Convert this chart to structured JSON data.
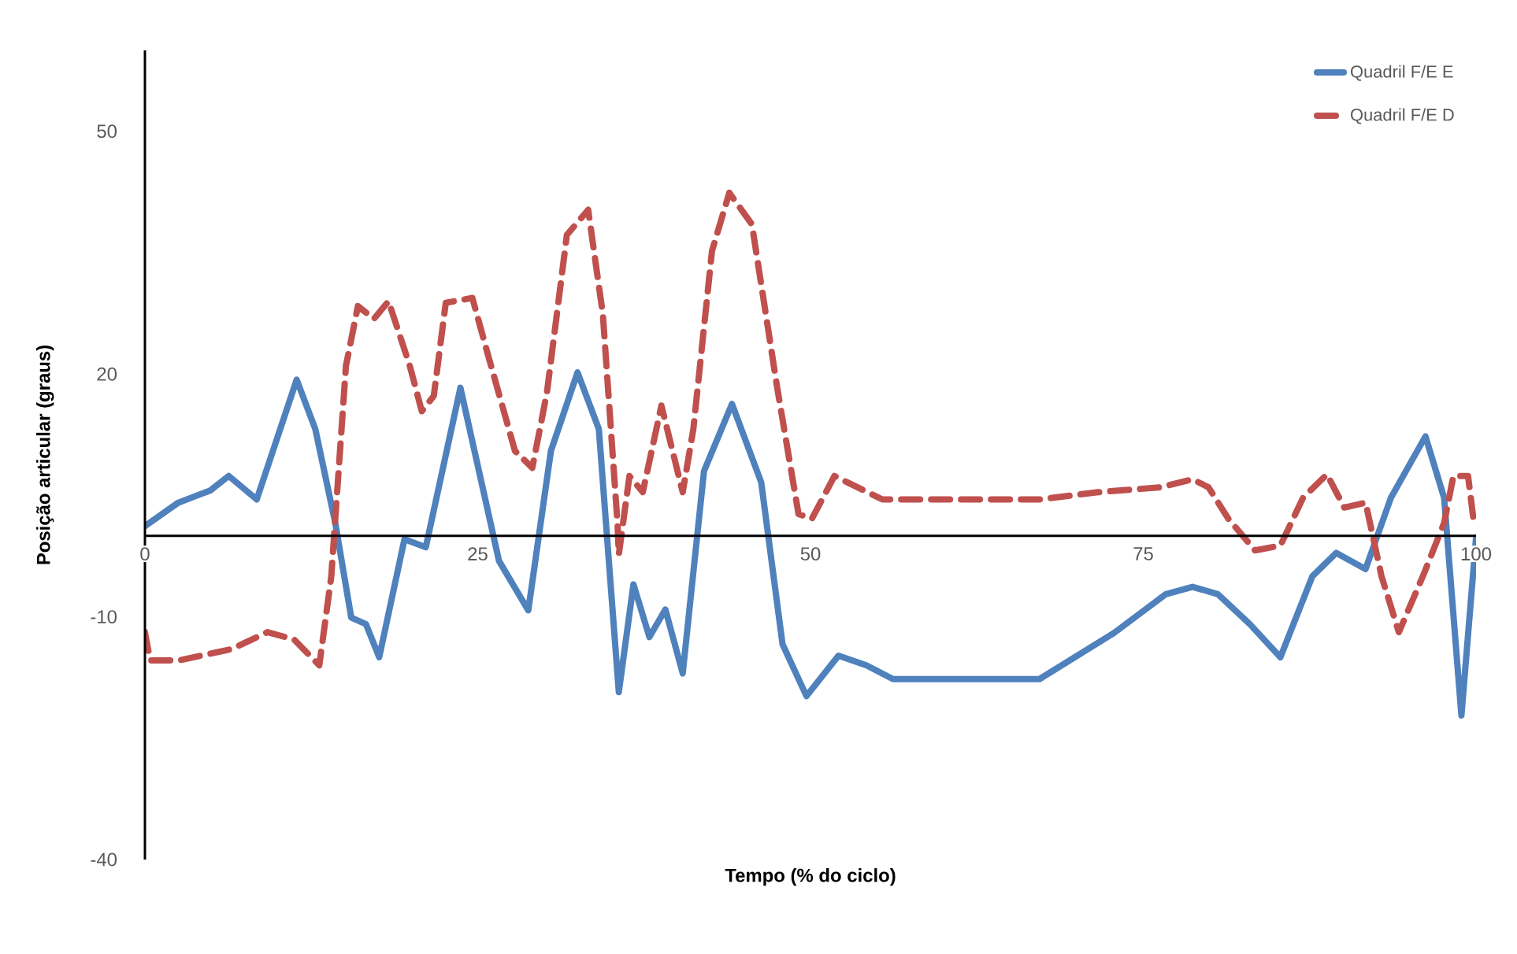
{
  "chart_data": {
    "type": "line",
    "xlabel": "Tempo (% do ciclo)",
    "ylabel": "Posição articular (graus)",
    "xlim": [
      0,
      100
    ],
    "ylim": [
      -40,
      60
    ],
    "xticks": [
      0,
      25,
      50,
      75,
      100
    ],
    "yticks": [
      -40,
      -10,
      20,
      50
    ],
    "grid": false,
    "legend": "top right",
    "series": [
      {
        "name": "Quadril F/E E",
        "color": "#4f81bd",
        "line_style": "solid",
        "x": [
          0,
          2.5,
          4.9,
          6.3,
          8.4,
          11.4,
          12.8,
          14.3,
          15.5,
          16.6,
          17.6,
          19.5,
          21.1,
          23.7,
          26.6,
          28.8,
          30.5,
          32.5,
          34.1,
          35.6,
          36.7,
          37.9,
          39.1,
          40.4,
          42,
          44.1,
          46.3,
          47.9,
          49.7,
          52.1,
          54.2,
          56.2,
          67.2,
          72.8,
          76.7,
          78.7,
          80.6,
          83,
          85.3,
          87.7,
          89.5,
          91.7,
          93.6,
          96.2,
          97.6,
          98.9,
          100
        ],
        "values": [
          1.2,
          4.1,
          5.6,
          7.4,
          4.5,
          19.3,
          13.2,
          1.6,
          -10.1,
          -10.9,
          -15,
          -0.4,
          -1.4,
          18.3,
          -3.1,
          -9.2,
          10.5,
          20.2,
          13.2,
          -19.3,
          -6,
          -12.5,
          -9.1,
          -17,
          8,
          16.3,
          6.6,
          -13.4,
          -19.8,
          -14.8,
          -16,
          -17.7,
          -17.7,
          -12,
          -7.2,
          -6.3,
          -7.2,
          -10.9,
          -15,
          -5,
          -2.1,
          -4.1,
          4.7,
          12.3,
          4.7,
          -22.2,
          -0.2
        ]
      },
      {
        "name": "Quadril F/E D",
        "color": "#c0504d",
        "line_style": "dashed",
        "x": [
          0,
          0.4,
          2.5,
          6.5,
          9.2,
          11.2,
          13.1,
          14,
          15.1,
          16,
          17.2,
          18.3,
          19.9,
          20.8,
          21.7,
          22.6,
          24.6,
          25.8,
          27.8,
          29.1,
          30.2,
          31.7,
          33.3,
          34.4,
          35.5,
          35.6,
          36.4,
          37.4,
          38.8,
          40.4,
          41.2,
          42.6,
          43.9,
          45.6,
          47.5,
          49.1,
          50.1,
          51.8,
          55.4,
          67.2,
          71.6,
          76.3,
          78.7,
          79.9,
          81.4,
          83.4,
          85.3,
          87,
          88.8,
          90.1,
          91.7,
          92.9,
          94.2,
          96,
          97.6,
          98.3,
          99.4,
          99.8
        ],
        "values": [
          -11.9,
          -15.4,
          -15.4,
          -14,
          -11.9,
          -12.8,
          -16,
          -5,
          21,
          28.4,
          26.8,
          29,
          21,
          15.4,
          17.3,
          28.8,
          29.4,
          22.2,
          10.5,
          8.4,
          17.7,
          37.2,
          40.3,
          27.4,
          1.6,
          -2.3,
          7.4,
          5.4,
          16.1,
          5.4,
          13.2,
          35.2,
          42.4,
          38.5,
          18.3,
          2.7,
          2.1,
          7.4,
          4.5,
          4.5,
          5.4,
          6,
          7,
          6,
          2.1,
          -1.8,
          -1.2,
          4.7,
          7.6,
          3.5,
          4.1,
          -5,
          -11.9,
          -5,
          1.6,
          7.4,
          7.4,
          2.1
        ]
      }
    ]
  }
}
